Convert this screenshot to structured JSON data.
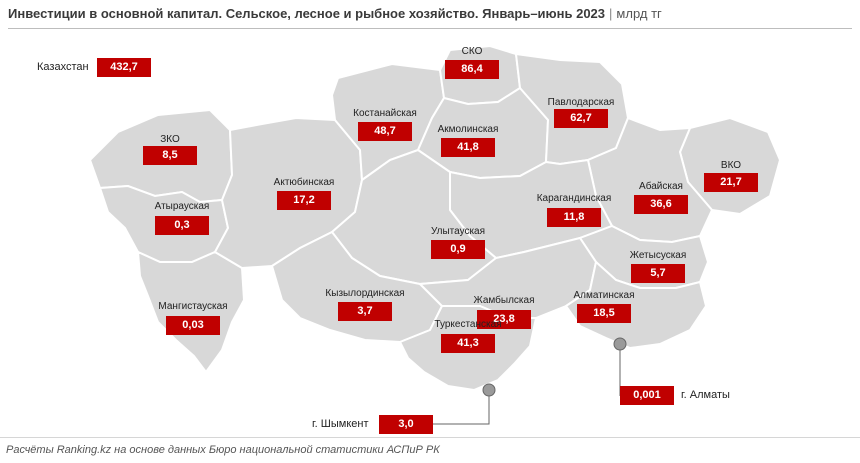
{
  "title": "Инвестиции в основной капитал. Сельское, лесное и рыбное хозяйство. Январь–июнь 2023",
  "title_sep": "|",
  "unit": "млрд тг",
  "footer": "Расчёты Ranking.kz на основе данных Бюро национальной статистики АСПиР РК",
  "colors": {
    "badge": "#c00000",
    "region_fill": "#d8d8d8",
    "border": "#ffffff"
  },
  "total": {
    "name": "Казахстан",
    "value": "432,7"
  },
  "regions": {
    "sko": {
      "name": "СКО",
      "value": "86,4"
    },
    "kostanay": {
      "name": "Костанайская",
      "value": "48,7"
    },
    "akmola": {
      "name": "Акмолинская",
      "value": "41,8"
    },
    "pavlodar": {
      "name": "Павлодарская",
      "value": "62,7"
    },
    "zko": {
      "name": "ЗКО",
      "value": "8,5"
    },
    "aktobe": {
      "name": "Актюбинская",
      "value": "17,2"
    },
    "atyrau": {
      "name": "Атырауская",
      "value": "0,3"
    },
    "vko": {
      "name": "ВКО",
      "value": "21,7"
    },
    "abay": {
      "name": "Абайская",
      "value": "36,6"
    },
    "karaganda": {
      "name": "Карагандинская",
      "value": "11,8"
    },
    "ulytau": {
      "name": "Улытауская",
      "value": "0,9"
    },
    "zhetysu": {
      "name": "Жетысуская",
      "value": "5,7"
    },
    "mangystau": {
      "name": "Мангистауская",
      "value": "0,03"
    },
    "kyzylorda": {
      "name": "Кызылординская",
      "value": "3,7"
    },
    "zhambyl": {
      "name": "Жамбылская",
      "value": "23,8"
    },
    "almaty_reg": {
      "name": "Алматинская",
      "value": "18,5"
    },
    "turkestan": {
      "name": "Туркестанская",
      "value": "41,3"
    }
  },
  "cities": {
    "almaty": {
      "name": "г. Алматы",
      "value": "0,001"
    },
    "shymkent": {
      "name": "г. Шымкент",
      "value": "3,0"
    }
  }
}
